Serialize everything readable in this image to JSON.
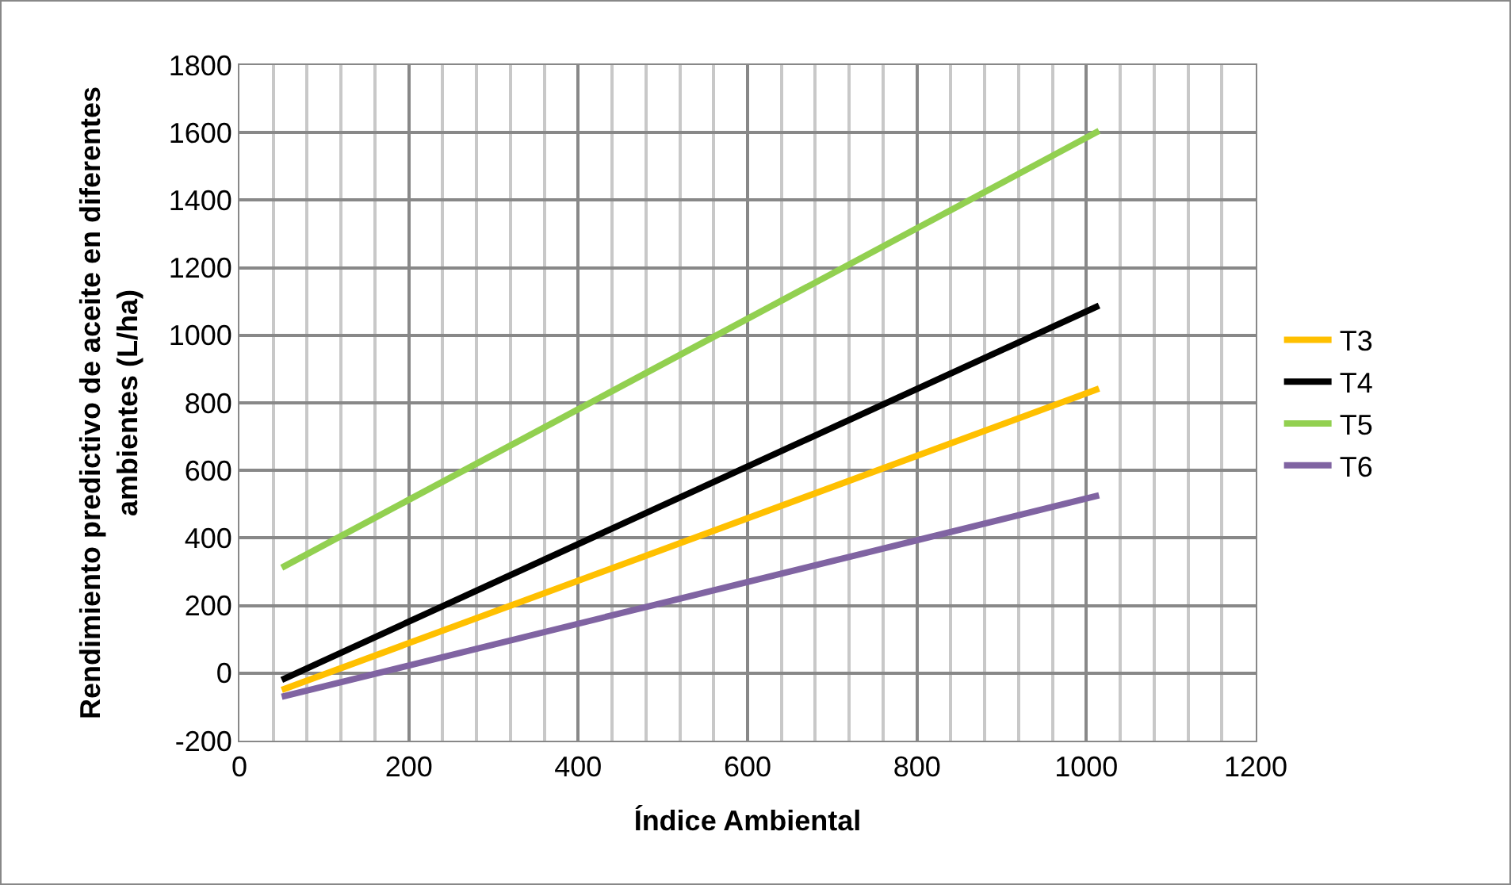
{
  "chart_data": {
    "type": "line",
    "xlabel": "Índice Ambiental",
    "ylabel": "Rendimiento predictivo de aceite en diferentes ambientes (L/ha)",
    "x": [
      50,
      1015
    ],
    "series": [
      {
        "name": "T3",
        "color": "#ffc000",
        "values": [
          -50,
          842
        ]
      },
      {
        "name": "T4",
        "color": "#000000",
        "values": [
          -20,
          1088
        ]
      },
      {
        "name": "T5",
        "color": "#92d050",
        "values": [
          312,
          1605
        ]
      },
      {
        "name": "T6",
        "color": "#8064a2",
        "values": [
          -70,
          526
        ]
      }
    ],
    "xlim": [
      0,
      1200
    ],
    "xticks": [
      0,
      200,
      400,
      600,
      800,
      1000,
      1200
    ],
    "ylim": [
      -200,
      1800
    ],
    "yticks": [
      -200,
      0,
      200,
      400,
      600,
      800,
      1000,
      1200,
      1400,
      1600,
      1800
    ],
    "grid": true,
    "legend": "right",
    "marker": "none",
    "line_style": "solid"
  }
}
